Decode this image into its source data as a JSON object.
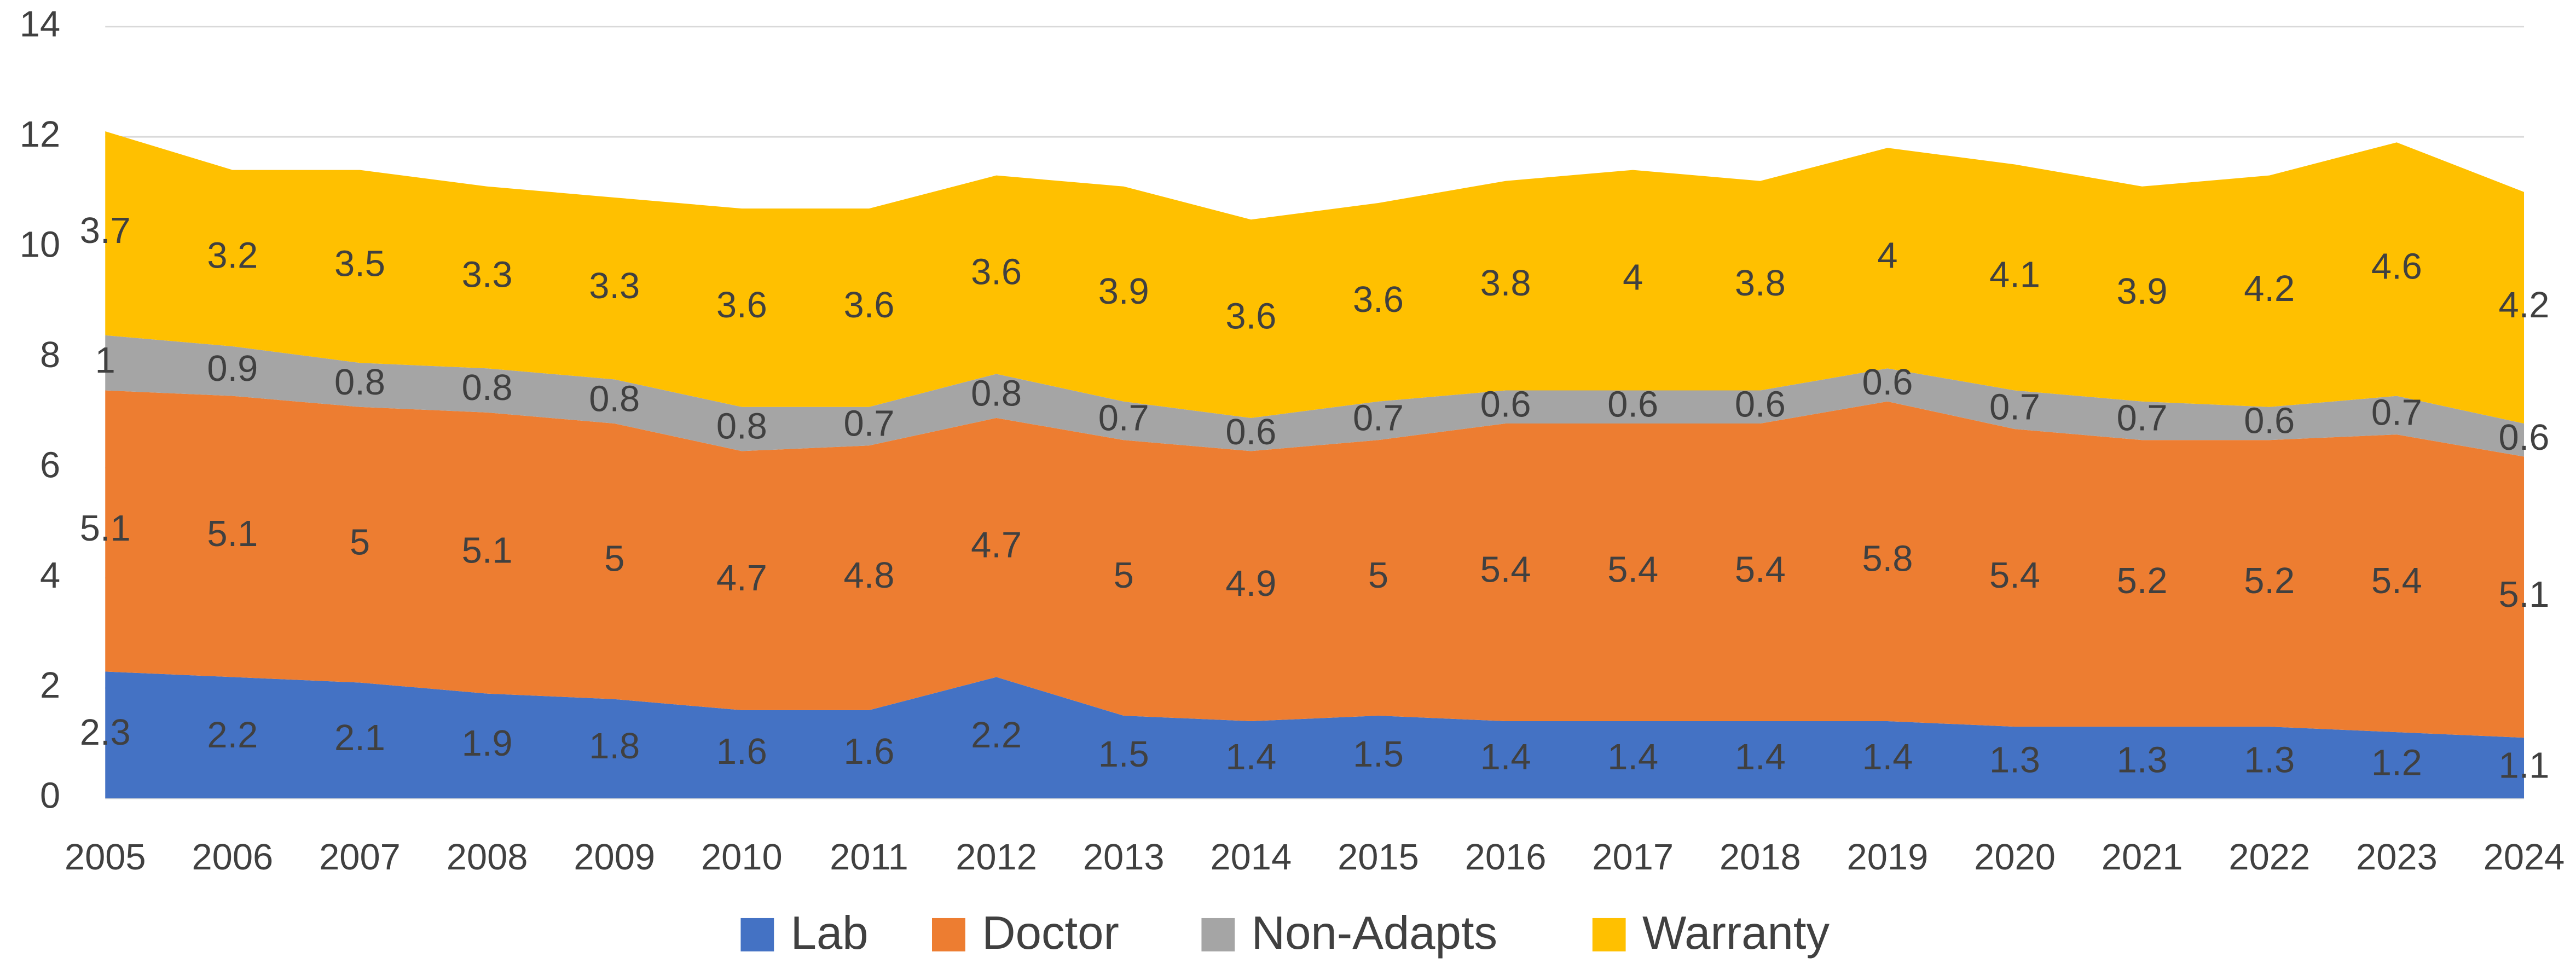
{
  "chart_data": {
    "type": "area",
    "stacked": true,
    "x": [
      2005,
      2006,
      2007,
      2008,
      2009,
      2010,
      2011,
      2012,
      2013,
      2014,
      2015,
      2016,
      2017,
      2018,
      2019,
      2020,
      2021,
      2022,
      2023,
      2024
    ],
    "xlim": [
      2005,
      2024
    ],
    "series": [
      {
        "name": "Lab",
        "color": "#4472c4",
        "values": [
          2.3,
          2.2,
          2.1,
          1.9,
          1.8,
          1.6,
          1.6,
          2.2,
          1.5,
          1.4,
          1.5,
          1.4,
          1.4,
          1.4,
          1.4,
          1.3,
          1.3,
          1.3,
          1.2,
          1.1
        ]
      },
      {
        "name": "Doctor",
        "color": "#ed7d31",
        "values": [
          5.1,
          5.1,
          5,
          5.1,
          5,
          4.7,
          4.8,
          4.7,
          5,
          4.9,
          5,
          5.4,
          5.4,
          5.4,
          5.8,
          5.4,
          5.2,
          5.2,
          5.4,
          5.1
        ]
      },
      {
        "name": "Non-Adapts",
        "color": "#a5a5a5",
        "values": [
          1,
          0.9,
          0.8,
          0.8,
          0.8,
          0.8,
          0.7,
          0.8,
          0.7,
          0.6,
          0.7,
          0.6,
          0.6,
          0.6,
          0.6,
          0.7,
          0.7,
          0.6,
          0.7,
          0.6
        ]
      },
      {
        "name": "Warranty",
        "color": "#ffc000",
        "values": [
          3.7,
          3.2,
          3.5,
          3.3,
          3.3,
          3.6,
          3.6,
          3.6,
          3.9,
          3.6,
          3.6,
          3.8,
          4,
          3.8,
          4,
          4.1,
          3.9,
          4.2,
          4.6,
          4.2
        ]
      }
    ],
    "ylim": [
      0,
      14
    ],
    "yticks": [
      0,
      2,
      4,
      6,
      8,
      10,
      12,
      14
    ],
    "grid": true,
    "legend": "bottom"
  }
}
